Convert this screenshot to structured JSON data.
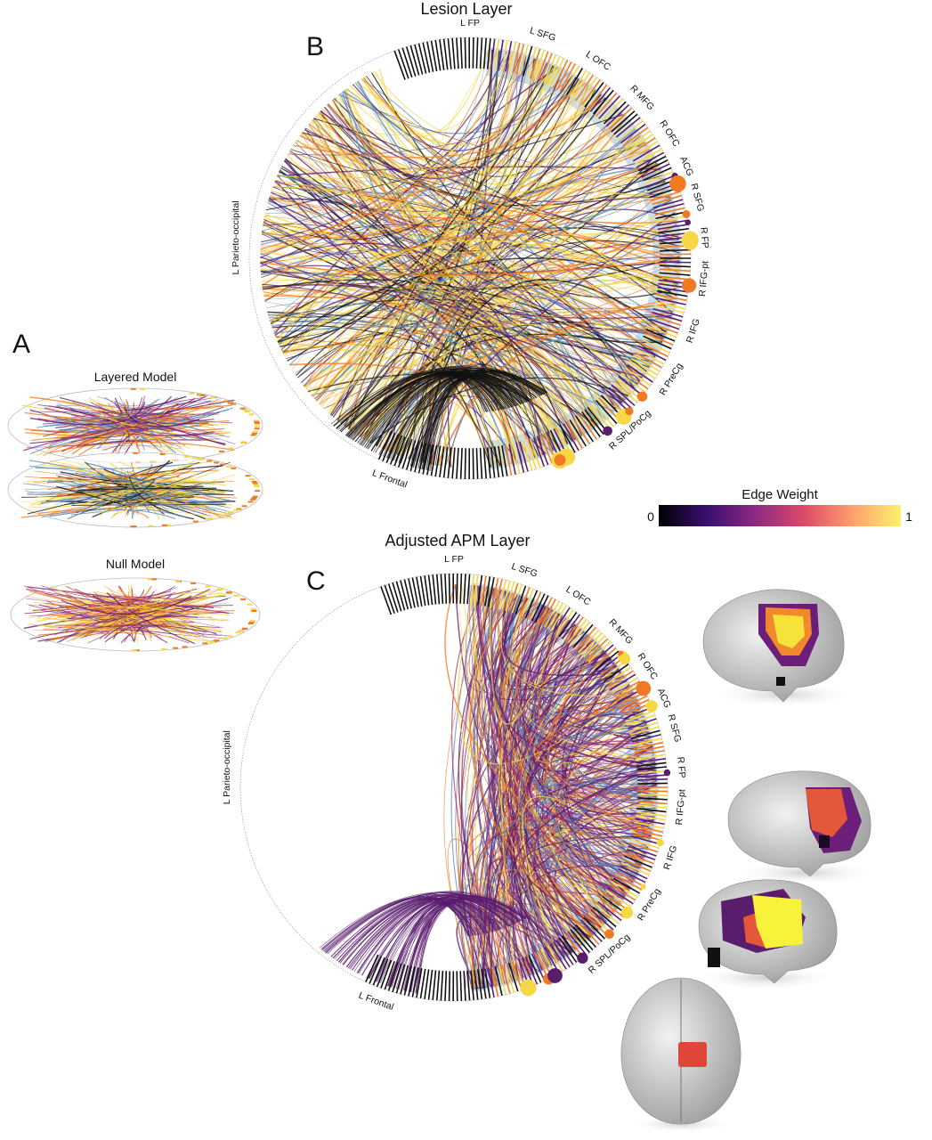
{
  "panels": {
    "a": {
      "letter": "A",
      "layered_title": "Layered Model",
      "null_title": "Null Model"
    },
    "b": {
      "letter": "B",
      "title": "Lesion Layer",
      "labels": [
        "L FP",
        "L SFG",
        "L OFC",
        "R MFG",
        "R OFC",
        "ACG",
        "R SFG",
        "R FP",
        "R IFG-pt",
        "R IFG",
        "R PreCg",
        "R SPL/PoCg",
        "L Frontal",
        "L Parieto-occipital"
      ]
    },
    "c": {
      "letter": "C",
      "title": "Adjusted APM Layer",
      "labels": [
        "L FP",
        "L SFG",
        "L OFC",
        "R MFG",
        "R OFC",
        "ACG",
        "R SFG",
        "R FP",
        "R IFG-pt",
        "R IFG",
        "R PreCg",
        "R SPL/PoCg",
        "L Frontal",
        "L Parieto-occipital"
      ]
    }
  },
  "colorbar": {
    "title": "Edge Weight",
    "min_label": "0",
    "max_label": "1",
    "stops": [
      "#000004",
      "#3b0f70",
      "#8c2981",
      "#de4968",
      "#fe9f6d",
      "#fcfdbf"
    ]
  },
  "colors": {
    "dark_edge": "#111111",
    "blue_edge": "#5b8cc0",
    "purple_edge": "#5a1d6e",
    "orange_edge": "#f07a23",
    "yellow_edge": "#f6d746",
    "highlight_band": "#8fb8dc"
  }
}
